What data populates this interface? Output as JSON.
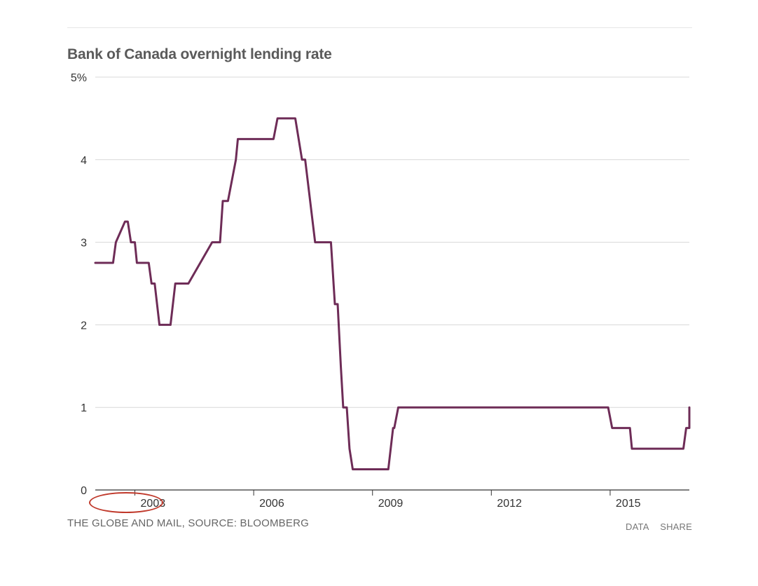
{
  "title": "Bank of Canada overnight lending rate",
  "source": "THE GLOBE AND MAIL, SOURCE: BLOOMBERG",
  "links": {
    "data": "DATA",
    "share": "SHARE"
  },
  "colors": {
    "line": "#6e2c57",
    "grid": "#d8d8d8",
    "annotation": "#c0392b"
  },
  "chart_data": {
    "type": "line",
    "title": "Bank of Canada overnight lending rate",
    "xlabel": "",
    "ylabel": "",
    "xlim": [
      2002.0,
      2017.0
    ],
    "ylim": [
      0,
      5
    ],
    "y_ticks": [
      0,
      1,
      2,
      3,
      4,
      5
    ],
    "y_tick_labels": [
      "0",
      "1",
      "2",
      "3",
      "4",
      "5%"
    ],
    "x_ticks": [
      2003,
      2006,
      2009,
      2012,
      2015
    ],
    "x_tick_labels": [
      "2003",
      "2006",
      "2009",
      "2012",
      "2015"
    ],
    "grid": true,
    "annotation": "circled 2003 tick label",
    "series": [
      {
        "x": [
          2002.0,
          2002.45,
          2002.52,
          2002.75,
          2002.82,
          2002.9,
          2003.0,
          2003.05,
          2003.35,
          2003.42,
          2003.5,
          2003.62,
          2003.7,
          2003.9,
          2004.02,
          2004.2,
          2004.3,
          2004.35,
          2004.95,
          2005.15,
          2005.22,
          2005.35,
          2005.55,
          2005.6,
          2005.75,
          2005.9,
          2005.95,
          2006.0,
          2006.5,
          2006.6,
          2006.95,
          2007.05,
          2007.22,
          2007.3,
          2007.55,
          2007.95,
          2008.05,
          2008.12,
          2008.2,
          2008.26,
          2008.35,
          2008.42,
          2008.5,
          2008.55,
          2009.4,
          2009.52,
          2009.55,
          2009.65,
          2014.95,
          2015.05,
          2015.5,
          2015.55,
          2016.85,
          2016.92,
          2017.0,
          2017.0
        ],
        "y": [
          2.75,
          2.75,
          3.0,
          3.25,
          3.25,
          3.0,
          3.0,
          2.75,
          2.75,
          2.5,
          2.5,
          2.0,
          2.0,
          2.0,
          2.5,
          2.5,
          2.5,
          2.5,
          3.0,
          3.0,
          3.5,
          3.5,
          4.0,
          4.25,
          4.25,
          4.25,
          4.25,
          4.25,
          4.25,
          4.5,
          4.5,
          4.5,
          4.0,
          4.0,
          3.0,
          3.0,
          2.25,
          2.25,
          1.5,
          1.0,
          1.0,
          0.5,
          0.25,
          0.25,
          0.25,
          0.75,
          0.75,
          1.0,
          1.0,
          0.75,
          0.75,
          0.5,
          0.5,
          0.75,
          0.75,
          1.0
        ]
      }
    ]
  }
}
